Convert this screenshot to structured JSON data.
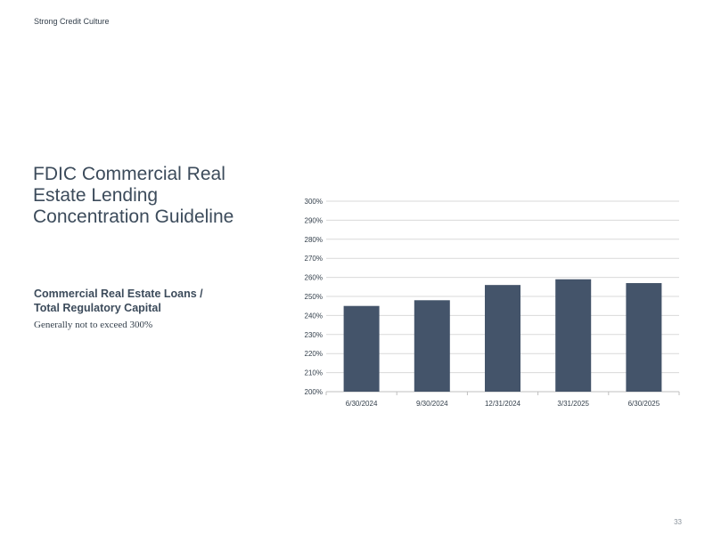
{
  "header": {
    "section_label": "Strong Credit Culture"
  },
  "main": {
    "title": "FDIC Commercial Real Estate Lending Concentration Guideline",
    "subtitle_line1": "Commercial Real Estate Loans /",
    "subtitle_line2": "Total Regulatory Capital",
    "note": "Generally not to exceed 300%"
  },
  "footer": {
    "page_number": "33"
  },
  "colors": {
    "bar": "#44546a",
    "grid": "#d9d9d9",
    "text": "#333f4b"
  },
  "chart_data": {
    "type": "bar",
    "categories": [
      "6/30/2024",
      "9/30/2024",
      "12/31/2024",
      "3/31/2025",
      "6/30/2025"
    ],
    "values": [
      245,
      248,
      256,
      259,
      257
    ],
    "ylim": [
      200,
      300
    ],
    "yticks": [
      "200%",
      "210%",
      "220%",
      "230%",
      "240%",
      "250%",
      "260%",
      "270%",
      "280%",
      "290%",
      "300%"
    ],
    "grid": true,
    "legend": "none"
  }
}
